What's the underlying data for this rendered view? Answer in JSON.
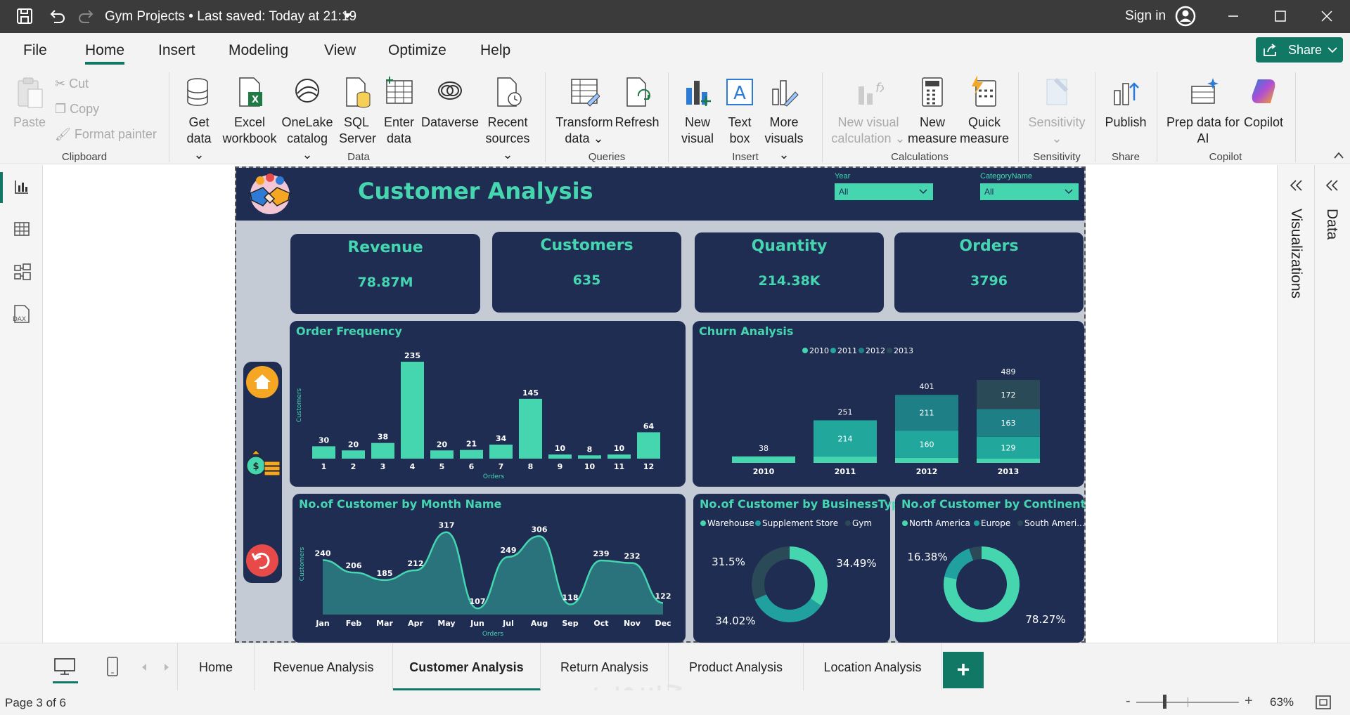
{
  "titlebar": {
    "title": "Gym Projects",
    "saved": "Last saved: Today at 21:19",
    "sign_in": "Sign in"
  },
  "menu": {
    "items": [
      "File",
      "Home",
      "Insert",
      "Modeling",
      "View",
      "Optimize",
      "Help"
    ],
    "share": "Share"
  },
  "ribbon": {
    "clipboard": {
      "paste": "Paste",
      "cut": "Cut",
      "copy": "Copy",
      "format_painter": "Format painter",
      "group": "Clipboard"
    },
    "data": {
      "get_data": [
        "Get",
        "data"
      ],
      "excel": [
        "Excel",
        "workbook"
      ],
      "onelake": [
        "OneLake",
        "catalog"
      ],
      "sql": [
        "SQL",
        "Server"
      ],
      "enter": [
        "Enter",
        "data"
      ],
      "dataverse": "Dataverse",
      "recent": [
        "Recent",
        "sources"
      ],
      "group": "Data"
    },
    "queries": {
      "transform": [
        "Transform",
        "data"
      ],
      "refresh": "Refresh",
      "group": "Queries"
    },
    "insert": {
      "new_visual": [
        "New",
        "visual"
      ],
      "text_box": [
        "Text",
        "box"
      ],
      "more_visuals": [
        "More",
        "visuals"
      ],
      "group": "Insert"
    },
    "calculations": {
      "new_visual_calc": [
        "New visual",
        "calculation"
      ],
      "new_measure": [
        "New",
        "measure"
      ],
      "quick_measure": [
        "Quick",
        "measure"
      ],
      "group": "Calculations"
    },
    "sensitivity": {
      "label": "Sensitivity",
      "group": "Sensitivity"
    },
    "share": {
      "publish": "Publish",
      "group": "Share"
    },
    "copilot": {
      "prep": [
        "Prep data for",
        "AI"
      ],
      "copilot": "Copilot",
      "group": "Copilot"
    }
  },
  "panes": {
    "visualizations": "Visualizations",
    "data": "Data"
  },
  "report": {
    "title": "Customer Analysis",
    "slicers": [
      {
        "label": "Year",
        "value": "All"
      },
      {
        "label": "CategoryName",
        "value": "All"
      }
    ],
    "kpis": [
      {
        "title": "Revenue",
        "value": "78.87M"
      },
      {
        "title": "Customers",
        "value": "635"
      },
      {
        "title": "Quantity",
        "value": "214.38K"
      },
      {
        "title": "Orders",
        "value": "3796"
      }
    ],
    "colors": {
      "navy": "#1f2d53",
      "teal": "#45d6b0",
      "home": "#f5a623",
      "back": "#e84a4a"
    }
  },
  "chart_data": [
    {
      "type": "bar",
      "title": "Order Frequency",
      "xlabel": "Orders",
      "ylabel": "Customers",
      "categories": [
        "1",
        "2",
        "3",
        "4",
        "5",
        "6",
        "7",
        "8",
        "9",
        "10",
        "11",
        "12"
      ],
      "values": [
        30,
        20,
        38,
        235,
        20,
        21,
        34,
        145,
        10,
        8,
        10,
        64
      ],
      "ylim": [
        0,
        235
      ]
    },
    {
      "type": "bar",
      "stacked": true,
      "title": "Churn Analysis",
      "legend": [
        "2010",
        "2011",
        "2012",
        "2013"
      ],
      "categories": [
        "2010",
        "2011",
        "2012",
        "2013"
      ],
      "series": [
        {
          "name": "2010",
          "values": [
            38,
            37,
            30,
            25
          ]
        },
        {
          "name": "2011",
          "values": [
            0,
            214,
            160,
            129
          ]
        },
        {
          "name": "2012",
          "values": [
            0,
            0,
            211,
            163
          ]
        },
        {
          "name": "2013",
          "values": [
            0,
            0,
            0,
            172
          ]
        }
      ],
      "totals": [
        38,
        251,
        401,
        489
      ],
      "segment_labels": [
        [
          "38"
        ],
        [
          "214"
        ],
        [
          "160",
          "211"
        ],
        [
          "129",
          "163",
          "172"
        ]
      ],
      "ylim": [
        0,
        489
      ]
    },
    {
      "type": "area",
      "title": "No.of Customer by Month Name",
      "xlabel": "Orders",
      "ylabel": "Customers",
      "categories": [
        "Jan",
        "Feb",
        "Mar",
        "Apr",
        "May",
        "Jun",
        "Jul",
        "Aug",
        "Sep",
        "Oct",
        "Nov",
        "Dec"
      ],
      "values": [
        240,
        206,
        185,
        212,
        317,
        107,
        249,
        306,
        118,
        239,
        232,
        122
      ],
      "ylim": [
        90,
        330
      ]
    },
    {
      "type": "pie",
      "donut": true,
      "title": "No.of Customer by BusinessType",
      "legend": [
        "Warehouse",
        "Supplement Store",
        "Gym"
      ],
      "values": [
        34.49,
        34.02,
        31.5
      ],
      "labels": [
        "34.49%",
        "34.02%",
        "31.5%"
      ]
    },
    {
      "type": "pie",
      "donut": true,
      "title": "No.of Customer by Continent",
      "legend": [
        "North America",
        "Europe",
        "South Ameri..."
      ],
      "values": [
        78.27,
        16.38,
        5.35
      ],
      "labels": [
        "78.27%",
        "16.38%",
        ""
      ]
    }
  ],
  "tabs": [
    "Home",
    "Revenue Analysis",
    "Customer Analysis",
    "Return Analysis",
    "Product Analysis",
    "Location Analysis"
  ],
  "add_tab": "+",
  "status": {
    "page": "Page 3 of 6",
    "zoom": "63%",
    "minus": "-",
    "plus": "+"
  },
  "watermark": "حسوب"
}
